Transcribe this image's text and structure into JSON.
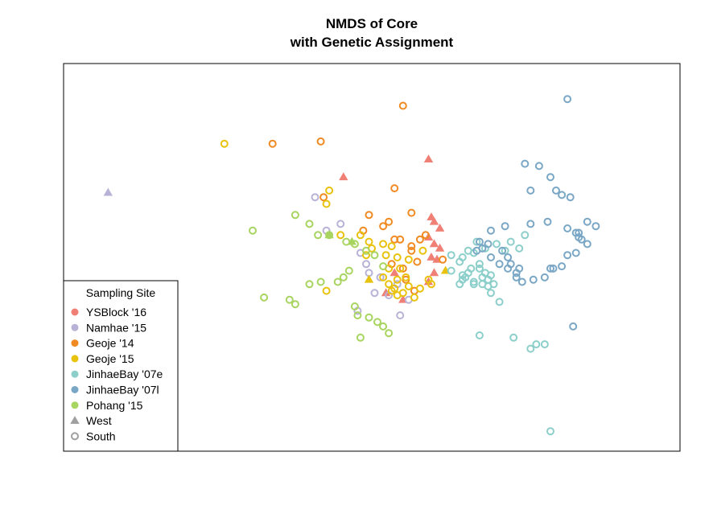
{
  "chart_data": {
    "type": "scatter",
    "title_lines": [
      "NMDS of Core",
      "with Genetic Assignment"
    ],
    "xlabel": "",
    "ylabel": "",
    "xlim": [
      -1.0,
      1.0
    ],
    "ylim": [
      -0.8,
      0.8
    ],
    "axes_drawn": false,
    "grid": false,
    "legend_placement": "bottom-left",
    "legend": {
      "title": "Sampling Site",
      "sites": [
        {
          "label": "YSBlock '16",
          "color": "#f08075"
        },
        {
          "label": "Namhae '15",
          "color": "#b8b2d6"
        },
        {
          "label": "Geoje '14",
          "color": "#f08a22"
        },
        {
          "label": "Geoje '15",
          "color": "#e8c20c"
        },
        {
          "label": "JinhaeBay '07e",
          "color": "#8ccfca"
        },
        {
          "label": "JinhaeBay '07l",
          "color": "#7aa7c5"
        },
        {
          "label": "Pohang '15",
          "color": "#a8d460"
        }
      ],
      "shapes": [
        {
          "label": "West",
          "shape": "triangle",
          "color": "#a0a0a0"
        },
        {
          "label": "South",
          "shape": "circle",
          "color": "#a0a0a0"
        }
      ]
    },
    "series": [
      {
        "name": "YSBlock '16",
        "marker": "triangle",
        "x": [
          -0.1,
          0.2,
          0.21,
          0.22,
          0.24,
          0.2,
          0.22,
          0.24,
          0.23,
          0.21,
          0.22,
          0.08,
          0.2,
          0.05,
          0.11
        ],
        "y": [
          0.36,
          0.44,
          0.18,
          0.16,
          0.13,
          0.09,
          0.06,
          0.04,
          -0.01,
          0.0,
          -0.07,
          -0.07,
          -0.11,
          -0.16,
          -0.19
        ]
      },
      {
        "name": "Namhae '15",
        "marker": "triangle",
        "x": [
          -0.93
        ],
        "y": [
          0.29
        ]
      },
      {
        "name": "Namhae '15",
        "marker": "circle",
        "x": [
          -0.2,
          -0.16,
          -0.11,
          -0.04,
          -0.02,
          -0.01,
          0.01,
          0.03,
          0.06,
          0.09,
          0.13,
          0.1,
          -0.05
        ],
        "y": [
          0.27,
          0.12,
          0.15,
          0.02,
          -0.03,
          -0.07,
          -0.16,
          -0.09,
          -0.17,
          -0.12,
          -0.19,
          -0.26,
          -0.24
        ]
      },
      {
        "name": "Geoje '14",
        "marker": "circle",
        "x": [
          0.11,
          -0.35,
          -0.18,
          -0.17,
          0.08,
          0.06,
          0.14,
          -0.01,
          0.04,
          -0.03,
          0.1,
          0.14,
          0.19,
          0.14,
          0.17,
          0.08,
          0.07,
          0.25,
          0.16,
          0.11,
          0.12,
          0.15
        ],
        "y": [
          0.68,
          0.51,
          0.52,
          0.27,
          0.31,
          0.16,
          0.2,
          0.19,
          0.14,
          0.12,
          0.08,
          0.03,
          0.1,
          0.05,
          0.08,
          0.08,
          -0.03,
          -0.01,
          -0.02,
          -0.05,
          -0.1,
          -0.15
        ]
      },
      {
        "name": "Geoje '15",
        "marker": "circle",
        "x": [
          -0.52,
          -0.15,
          -0.16,
          -0.11,
          -0.04,
          -0.01,
          0.04,
          0.0,
          -0.02,
          0.05,
          0.07,
          0.09,
          0.13,
          0.18,
          0.1,
          0.12,
          0.04,
          0.06,
          0.08,
          0.09,
          0.13,
          0.17,
          0.21,
          0.2,
          0.15,
          -0.16,
          0.07,
          0.09,
          0.11,
          0.06
        ],
        "y": [
          0.51,
          0.3,
          0.24,
          0.1,
          0.1,
          0.07,
          0.06,
          0.04,
          0.01,
          0.01,
          0.05,
          0.0,
          -0.01,
          0.03,
          -0.05,
          -0.09,
          -0.09,
          -0.12,
          -0.14,
          -0.1,
          -0.13,
          -0.14,
          -0.12,
          -0.1,
          -0.18,
          -0.15,
          -0.15,
          -0.17,
          -0.16,
          -0.05
        ]
      },
      {
        "name": "Geoje '15",
        "marker": "triangle",
        "x": [
          -0.01,
          0.26
        ],
        "y": [
          -0.1,
          -0.06
        ]
      },
      {
        "name": "JinhaeBay '07e",
        "marker": "circle",
        "x": [
          0.37,
          0.28,
          0.31,
          0.32,
          0.35,
          0.34,
          0.33,
          0.39,
          0.41,
          0.42,
          0.38,
          0.34,
          0.36,
          0.4,
          0.44,
          0.47,
          0.49,
          0.54,
          0.52,
          0.32,
          0.32,
          0.31,
          0.28,
          0.36,
          0.41,
          0.43,
          0.39,
          0.4,
          0.38,
          0.42,
          0.45,
          0.58,
          0.61
        ],
        "y": [
          0.07,
          0.01,
          -0.02,
          0.0,
          -0.05,
          -0.07,
          -0.09,
          -0.12,
          -0.13,
          -0.08,
          -0.03,
          0.03,
          0.02,
          0.04,
          0.06,
          0.03,
          0.07,
          0.1,
          0.04,
          -0.08,
          -0.1,
          -0.12,
          -0.06,
          -0.11,
          -0.1,
          -0.12,
          -0.09,
          -0.07,
          -0.05,
          -0.16,
          -0.2,
          -0.39,
          -0.39
        ]
      },
      {
        "name": "JinhaeBay '07e",
        "marker": "circle",
        "x": [
          0.63,
          0.56,
          0.36,
          0.38,
          0.5
        ],
        "y": [
          -0.78,
          -0.41,
          -0.12,
          -0.35,
          -0.36
        ]
      },
      {
        "name": "JinhaeBay '07l",
        "marker": "circle",
        "x": [
          0.69,
          0.54,
          0.59,
          0.63,
          0.56,
          0.65,
          0.67,
          0.7,
          0.76,
          0.79,
          0.73,
          0.72,
          0.73,
          0.74,
          0.76,
          0.72,
          0.69,
          0.67,
          0.64,
          0.61,
          0.57,
          0.53,
          0.51,
          0.51,
          0.48,
          0.45,
          0.42,
          0.37,
          0.38,
          0.42,
          0.47,
          0.56,
          0.62,
          0.69,
          0.52,
          0.71,
          0.63,
          0.49,
          0.48,
          0.46,
          0.39,
          0.41
        ],
        "y": [
          0.71,
          0.42,
          0.41,
          0.36,
          0.3,
          0.3,
          0.28,
          0.27,
          0.16,
          0.14,
          0.11,
          0.11,
          0.09,
          0.08,
          0.06,
          0.02,
          0.01,
          -0.04,
          -0.05,
          -0.09,
          -0.1,
          -0.11,
          -0.09,
          -0.07,
          -0.05,
          -0.03,
          0.0,
          0.03,
          0.07,
          0.12,
          0.14,
          0.15,
          0.16,
          0.13,
          -0.05,
          -0.31,
          -0.05,
          -0.03,
          0.0,
          0.03,
          0.04,
          0.06
        ]
      },
      {
        "name": "Pohang '15",
        "marker": "circle",
        "x": [
          -0.42,
          -0.27,
          -0.22,
          -0.19,
          -0.15,
          -0.09,
          -0.06,
          -0.02,
          0.01,
          0.04,
          -0.08,
          -0.1,
          -0.12,
          -0.18,
          -0.22,
          -0.38,
          -0.29,
          -0.27,
          -0.06,
          -0.05,
          -0.01,
          0.02,
          0.04,
          0.06,
          -0.04
        ],
        "y": [
          0.12,
          0.19,
          0.15,
          0.1,
          0.1,
          0.07,
          0.06,
          0.03,
          0.01,
          -0.04,
          -0.06,
          -0.09,
          -0.11,
          -0.11,
          -0.12,
          -0.18,
          -0.19,
          -0.21,
          -0.22,
          -0.26,
          -0.27,
          -0.29,
          -0.31,
          -0.34,
          -0.36
        ]
      },
      {
        "name": "Pohang '15",
        "marker": "triangle",
        "x": [
          -0.15,
          -0.07
        ],
        "y": [
          0.1,
          0.07
        ]
      }
    ]
  }
}
